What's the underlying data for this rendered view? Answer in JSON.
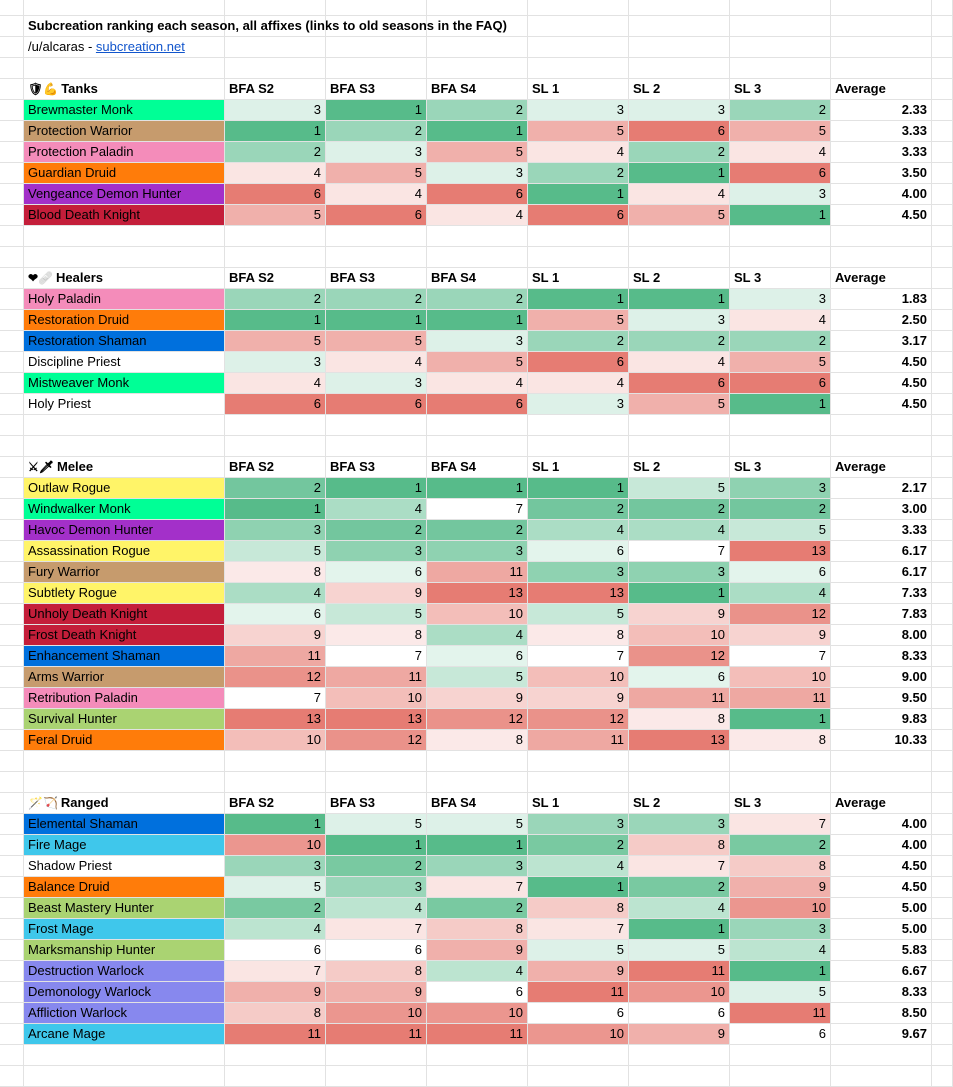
{
  "title": "Subcreation ranking each season, all affixes (links to old seasons in the FAQ)",
  "credit": {
    "author": "/u/alcaras - ",
    "link": "subcreation.net"
  },
  "columns": [
    "BFA S2",
    "BFA S3",
    "BFA S4",
    "SL 1",
    "SL 2",
    "SL 3",
    "Average"
  ],
  "scale_colors": {
    "best": "#57bb8a",
    "mid": "#ffffff",
    "worst": "#e67c73"
  },
  "groups": [
    {
      "name": "Tanks",
      "icons": "🛡💪",
      "rows": [
        {
          "spec": "Brewmaster Monk",
          "color": "#00ff96",
          "ranks": [
            3,
            1,
            2,
            3,
            3,
            2
          ],
          "avg": "2.33"
        },
        {
          "spec": "Protection Warrior",
          "color": "#c69b6d",
          "ranks": [
            1,
            2,
            1,
            5,
            6,
            5
          ],
          "avg": "3.33"
        },
        {
          "spec": "Protection Paladin",
          "color": "#f48cba",
          "ranks": [
            2,
            3,
            5,
            4,
            2,
            4
          ],
          "avg": "3.33"
        },
        {
          "spec": "Guardian Druid",
          "color": "#ff7c0a",
          "ranks": [
            4,
            5,
            3,
            2,
            1,
            6
          ],
          "avg": "3.50"
        },
        {
          "spec": "Vengeance Demon Hunter",
          "color": "#a330c9",
          "ranks": [
            6,
            4,
            6,
            1,
            4,
            3
          ],
          "avg": "4.00"
        },
        {
          "spec": "Blood Death Knight",
          "color": "#c41e3a",
          "ranks": [
            5,
            6,
            4,
            6,
            5,
            1
          ],
          "avg": "4.50"
        }
      ]
    },
    {
      "name": "Healers",
      "icons": "❤🩹",
      "rows": [
        {
          "spec": "Holy Paladin",
          "color": "#f48cba",
          "ranks": [
            2,
            2,
            2,
            1,
            1,
            3
          ],
          "avg": "1.83"
        },
        {
          "spec": "Restoration Druid",
          "color": "#ff7c0a",
          "ranks": [
            1,
            1,
            1,
            5,
            3,
            4
          ],
          "avg": "2.50"
        },
        {
          "spec": "Restoration Shaman",
          "color": "#0070dd",
          "ranks": [
            5,
            5,
            3,
            2,
            2,
            2
          ],
          "avg": "3.17"
        },
        {
          "spec": "Discipline Priest",
          "color": "#ffffff",
          "ranks": [
            3,
            4,
            5,
            6,
            4,
            5
          ],
          "avg": "4.50"
        },
        {
          "spec": "Mistweaver Monk",
          "color": "#00ff96",
          "ranks": [
            4,
            3,
            4,
            4,
            6,
            6
          ],
          "avg": "4.50"
        },
        {
          "spec": "Holy Priest",
          "color": "#ffffff",
          "ranks": [
            6,
            6,
            6,
            3,
            5,
            1
          ],
          "avg": "4.50"
        }
      ]
    },
    {
      "name": "Melee",
      "icons": "⚔🗡",
      "rows": [
        {
          "spec": "Outlaw Rogue",
          "color": "#fff468",
          "ranks": [
            2,
            1,
            1,
            1,
            5,
            3
          ],
          "avg": "2.17"
        },
        {
          "spec": "Windwalker Monk",
          "color": "#00ff96",
          "ranks": [
            1,
            4,
            7,
            2,
            2,
            2
          ],
          "avg": "3.00"
        },
        {
          "spec": "Havoc Demon Hunter",
          "color": "#a330c9",
          "ranks": [
            3,
            2,
            2,
            4,
            4,
            5
          ],
          "avg": "3.33"
        },
        {
          "spec": "Assassination Rogue",
          "color": "#fff468",
          "ranks": [
            5,
            3,
            3,
            6,
            7,
            13
          ],
          "avg": "6.17"
        },
        {
          "spec": "Fury Warrior",
          "color": "#c69b6d",
          "ranks": [
            8,
            6,
            11,
            3,
            3,
            6
          ],
          "avg": "6.17"
        },
        {
          "spec": "Subtlety Rogue",
          "color": "#fff468",
          "ranks": [
            4,
            9,
            13,
            13,
            1,
            4
          ],
          "avg": "7.33"
        },
        {
          "spec": "Unholy Death Knight",
          "color": "#c41e3a",
          "ranks": [
            6,
            5,
            10,
            5,
            9,
            12
          ],
          "avg": "7.83"
        },
        {
          "spec": "Frost Death Knight",
          "color": "#c41e3a",
          "ranks": [
            9,
            8,
            4,
            8,
            10,
            9
          ],
          "avg": "8.00"
        },
        {
          "spec": "Enhancement Shaman",
          "color": "#0070dd",
          "ranks": [
            11,
            7,
            6,
            7,
            12,
            7
          ],
          "avg": "8.33"
        },
        {
          "spec": "Arms Warrior",
          "color": "#c69b6d",
          "ranks": [
            12,
            11,
            5,
            10,
            6,
            10
          ],
          "avg": "9.00"
        },
        {
          "spec": "Retribution Paladin",
          "color": "#f48cba",
          "ranks": [
            7,
            10,
            9,
            9,
            11,
            11
          ],
          "avg": "9.50"
        },
        {
          "spec": "Survival Hunter",
          "color": "#aad372",
          "ranks": [
            13,
            13,
            12,
            12,
            8,
            1
          ],
          "avg": "9.83"
        },
        {
          "spec": "Feral Druid",
          "color": "#ff7c0a",
          "ranks": [
            10,
            12,
            8,
            11,
            13,
            8
          ],
          "avg": "10.33"
        }
      ]
    },
    {
      "name": "Ranged",
      "icons": "🪄🏹",
      "rows": [
        {
          "spec": "Elemental Shaman",
          "color": "#0070dd",
          "ranks": [
            1,
            5,
            5,
            3,
            3,
            7
          ],
          "avg": "4.00"
        },
        {
          "spec": "Fire Mage",
          "color": "#3fc7eb",
          "ranks": [
            10,
            1,
            1,
            2,
            8,
            2
          ],
          "avg": "4.00"
        },
        {
          "spec": "Shadow Priest",
          "color": "#ffffff",
          "ranks": [
            3,
            2,
            3,
            4,
            7,
            8
          ],
          "avg": "4.50"
        },
        {
          "spec": "Balance Druid",
          "color": "#ff7c0a",
          "ranks": [
            5,
            3,
            7,
            1,
            2,
            9
          ],
          "avg": "4.50"
        },
        {
          "spec": "Beast Mastery Hunter",
          "color": "#aad372",
          "ranks": [
            2,
            4,
            2,
            8,
            4,
            10
          ],
          "avg": "5.00"
        },
        {
          "spec": "Frost Mage",
          "color": "#3fc7eb",
          "ranks": [
            4,
            7,
            8,
            7,
            1,
            3
          ],
          "avg": "5.00"
        },
        {
          "spec": "Marksmanship Hunter",
          "color": "#aad372",
          "ranks": [
            6,
            6,
            9,
            5,
            5,
            4
          ],
          "avg": "5.83"
        },
        {
          "spec": "Destruction Warlock",
          "color": "#8788ee",
          "ranks": [
            7,
            8,
            4,
            9,
            11,
            1
          ],
          "avg": "6.67"
        },
        {
          "spec": "Demonology Warlock",
          "color": "#8788ee",
          "ranks": [
            9,
            9,
            6,
            11,
            10,
            5
          ],
          "avg": "8.33"
        },
        {
          "spec": "Affliction Warlock",
          "color": "#8788ee",
          "ranks": [
            8,
            10,
            10,
            6,
            6,
            11
          ],
          "avg": "8.50"
        },
        {
          "spec": "Arcane Mage",
          "color": "#3fc7eb",
          "ranks": [
            11,
            11,
            11,
            10,
            9,
            6
          ],
          "avg": "9.67"
        }
      ]
    }
  ]
}
